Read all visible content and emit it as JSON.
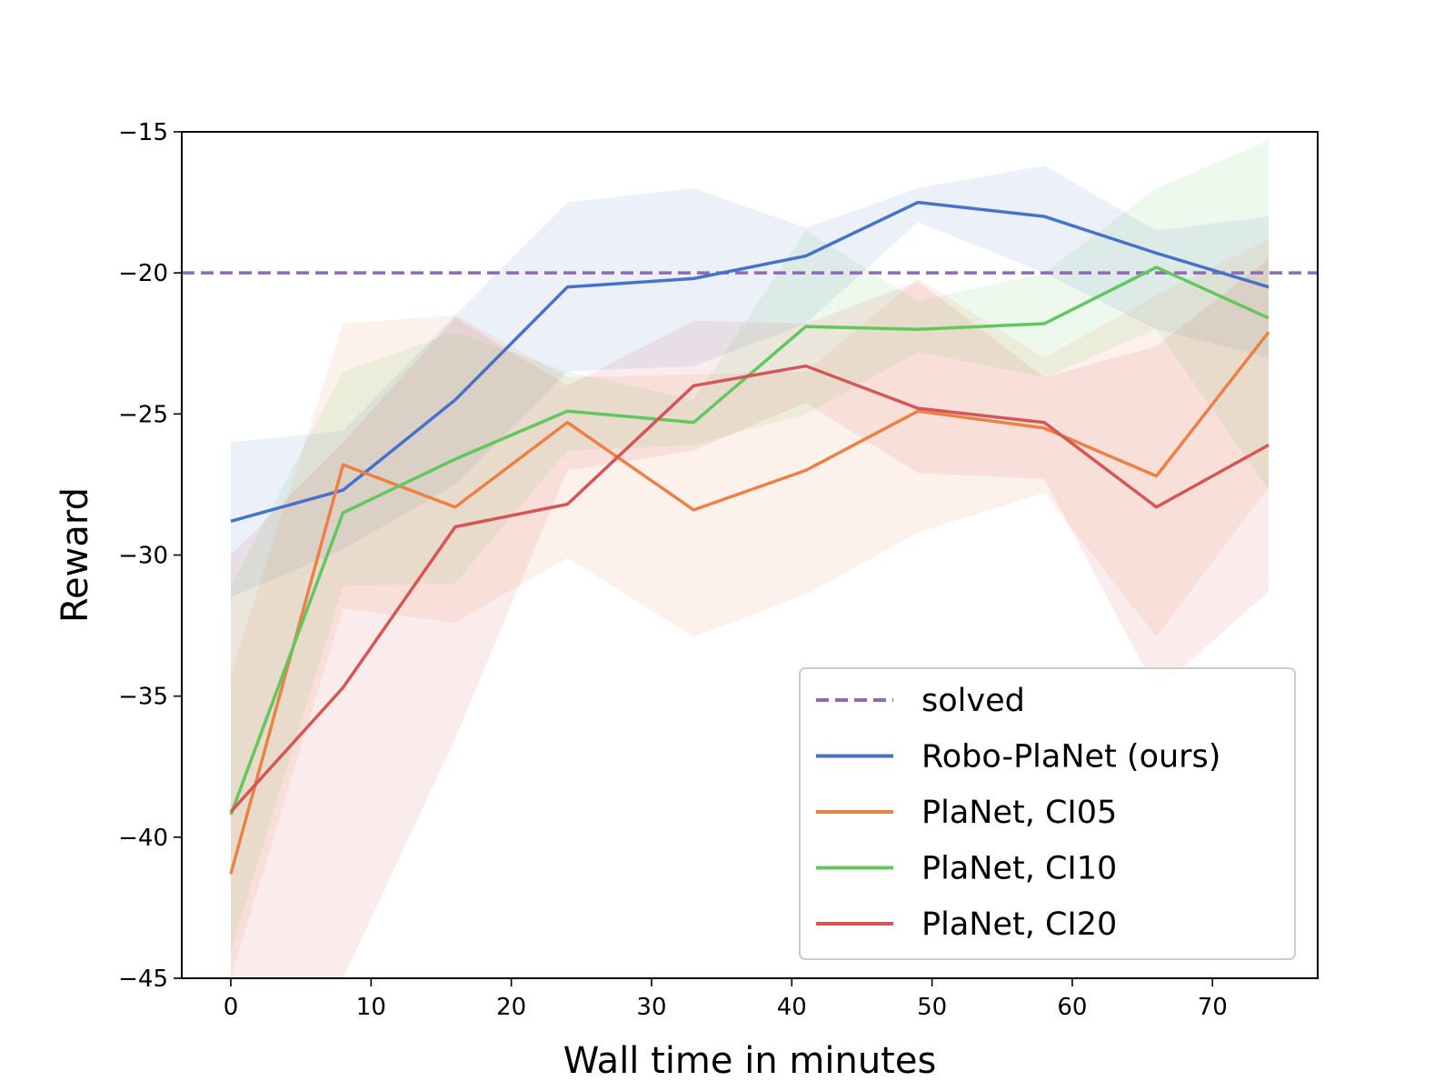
{
  "chart_data": {
    "type": "line",
    "title": "",
    "xlabel": "Wall time in minutes",
    "ylabel": "Reward",
    "xlim": [
      -3.5,
      77.5
    ],
    "ylim": [
      -45,
      -15
    ],
    "xticks": [
      0,
      10,
      20,
      30,
      40,
      50,
      60,
      70
    ],
    "xtick_labels": [
      "0",
      "10",
      "20",
      "30",
      "40",
      "50",
      "60",
      "70"
    ],
    "yticks": [
      -15,
      -20,
      -25,
      -30,
      -35,
      -40,
      -45
    ],
    "ytick_labels": [
      "−15",
      "−20",
      "−25",
      "−30",
      "−35",
      "−40",
      "−45"
    ],
    "reference_line": {
      "name": "solved",
      "y": -20,
      "style": "dashed",
      "color": "#8f6bb3"
    },
    "x": [
      0,
      8,
      16,
      24,
      33,
      41,
      49,
      58,
      66,
      74
    ],
    "series": [
      {
        "name": "Robo-PlaNet (ours)",
        "color": "#4672c9",
        "values": [
          -28.8,
          -27.7,
          -24.5,
          -20.5,
          -20.2,
          -19.4,
          -17.5,
          -18.0,
          -19.3,
          -20.5
        ],
        "lower": [
          -31.5,
          -29.8,
          -27.5,
          -23.5,
          -23.3,
          -21.8,
          -18.2,
          -20.0,
          -22.0,
          -23.0
        ],
        "upper": [
          -26.0,
          -25.6,
          -21.5,
          -17.5,
          -17.0,
          -18.4,
          -17.0,
          -16.2,
          -18.5,
          -18.0
        ]
      },
      {
        "name": "PlaNet, CI05",
        "color": "#eb8145",
        "values": [
          -41.3,
          -26.8,
          -28.3,
          -25.3,
          -28.4,
          -27.0,
          -24.9,
          -25.5,
          -27.2,
          -22.1
        ],
        "lower": [
          -45.0,
          -31.9,
          -32.4,
          -30.1,
          -32.9,
          -31.4,
          -29.2,
          -27.8,
          -32.9,
          -27.6
        ],
        "upper": [
          -34.2,
          -21.8,
          -21.5,
          -23.7,
          -23.6,
          -23.5,
          -20.2,
          -23.0,
          -20.8,
          -18.8
        ]
      },
      {
        "name": "PlaNet, CI10",
        "color": "#62c75e",
        "values": [
          -39.2,
          -28.5,
          -26.6,
          -24.9,
          -25.3,
          -21.9,
          -22.0,
          -21.8,
          -19.8,
          -21.6
        ],
        "lower": [
          -44.0,
          -31.1,
          -31.0,
          -26.3,
          -26.1,
          -25.0,
          -22.8,
          -23.7,
          -22.0,
          -27.7
        ],
        "upper": [
          -31.1,
          -23.5,
          -22.1,
          -23.5,
          -24.5,
          -18.5,
          -21.0,
          -20.0,
          -17.0,
          -15.3
        ]
      },
      {
        "name": "PlaNet, CI20",
        "color": "#d45656",
        "values": [
          -39.1,
          -34.7,
          -29.0,
          -28.2,
          -24.0,
          -23.3,
          -24.8,
          -25.3,
          -28.3,
          -26.1
        ],
        "lower": [
          -45.0,
          -45.0,
          -36.5,
          -27.0,
          -26.3,
          -24.6,
          -27.1,
          -27.3,
          -34.8,
          -31.3
        ],
        "upper": [
          -30.0,
          -26.0,
          -21.6,
          -24.0,
          -21.7,
          -21.8,
          -20.3,
          -23.7,
          -22.6,
          -19.5
        ]
      }
    ],
    "legend": {
      "position": "bottom-right",
      "entries": [
        "solved",
        "Robo-PlaNet (ours)",
        "PlaNet, CI05",
        "PlaNet, CI10",
        "PlaNet, CI20"
      ]
    }
  }
}
